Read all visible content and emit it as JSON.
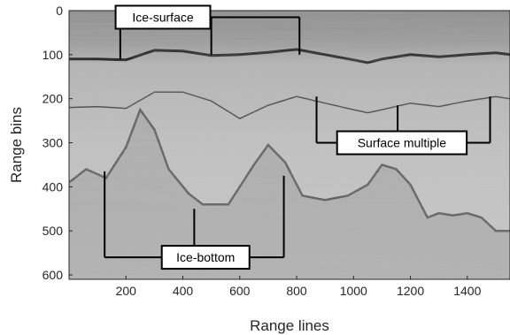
{
  "chart_data": {
    "type": "heatmap",
    "title": "",
    "xlabel": "Range lines",
    "ylabel": "Range bins",
    "xlim": [
      0,
      1550
    ],
    "ylim": [
      610,
      0
    ],
    "x_ticks": [
      200,
      400,
      600,
      800,
      1000,
      1200,
      1400
    ],
    "y_ticks": [
      0,
      100,
      200,
      300,
      400,
      500,
      600
    ],
    "colormap": "grayscale",
    "grid": false,
    "legend": "none",
    "annotations": [
      {
        "label": "Ice-surface",
        "box_x": 330,
        "box_y": 15,
        "bracket_y": 15,
        "targets": [
          [
            180,
            110
          ],
          [
            500,
            100
          ],
          [
            810,
            100
          ]
        ]
      },
      {
        "label": "Surface multiple",
        "box_x": 1170,
        "box_y": 300,
        "bracket_y": 300,
        "targets": [
          [
            870,
            195
          ],
          [
            1155,
            215
          ],
          [
            1480,
            195
          ]
        ]
      },
      {
        "label": "Ice-bottom",
        "box_x": 480,
        "box_y": 560,
        "bracket_y": 560,
        "targets": [
          [
            125,
            365
          ],
          [
            440,
            450
          ],
          [
            755,
            375
          ]
        ]
      }
    ],
    "reflectors": {
      "ice_surface": {
        "x": [
          0,
          100,
          200,
          300,
          400,
          500,
          600,
          700,
          800,
          900,
          1000,
          1050,
          1100,
          1200,
          1300,
          1400,
          1500,
          1550
        ],
        "y": [
          110,
          110,
          112,
          90,
          92,
          102,
          100,
          95,
          88,
          100,
          112,
          118,
          110,
          100,
          105,
          100,
          96,
          100
        ]
      },
      "surface_multiple": {
        "x": [
          0,
          100,
          200,
          300,
          400,
          500,
          600,
          700,
          800,
          900,
          1000,
          1050,
          1100,
          1200,
          1300,
          1400,
          1500,
          1550
        ],
        "y": [
          220,
          218,
          222,
          185,
          185,
          205,
          245,
          215,
          195,
          210,
          225,
          232,
          225,
          210,
          218,
          205,
          195,
          200
        ]
      },
      "ice_bottom": {
        "x": [
          0,
          60,
          130,
          200,
          250,
          300,
          350,
          420,
          470,
          560,
          650,
          700,
          760,
          820,
          900,
          980,
          1050,
          1100,
          1150,
          1200,
          1260,
          1300,
          1350,
          1400,
          1450,
          1500,
          1550
        ],
        "y": [
          390,
          360,
          380,
          310,
          225,
          270,
          360,
          415,
          440,
          440,
          350,
          305,
          345,
          420,
          430,
          420,
          395,
          350,
          360,
          395,
          470,
          460,
          465,
          460,
          470,
          500,
          500
        ]
      }
    }
  }
}
